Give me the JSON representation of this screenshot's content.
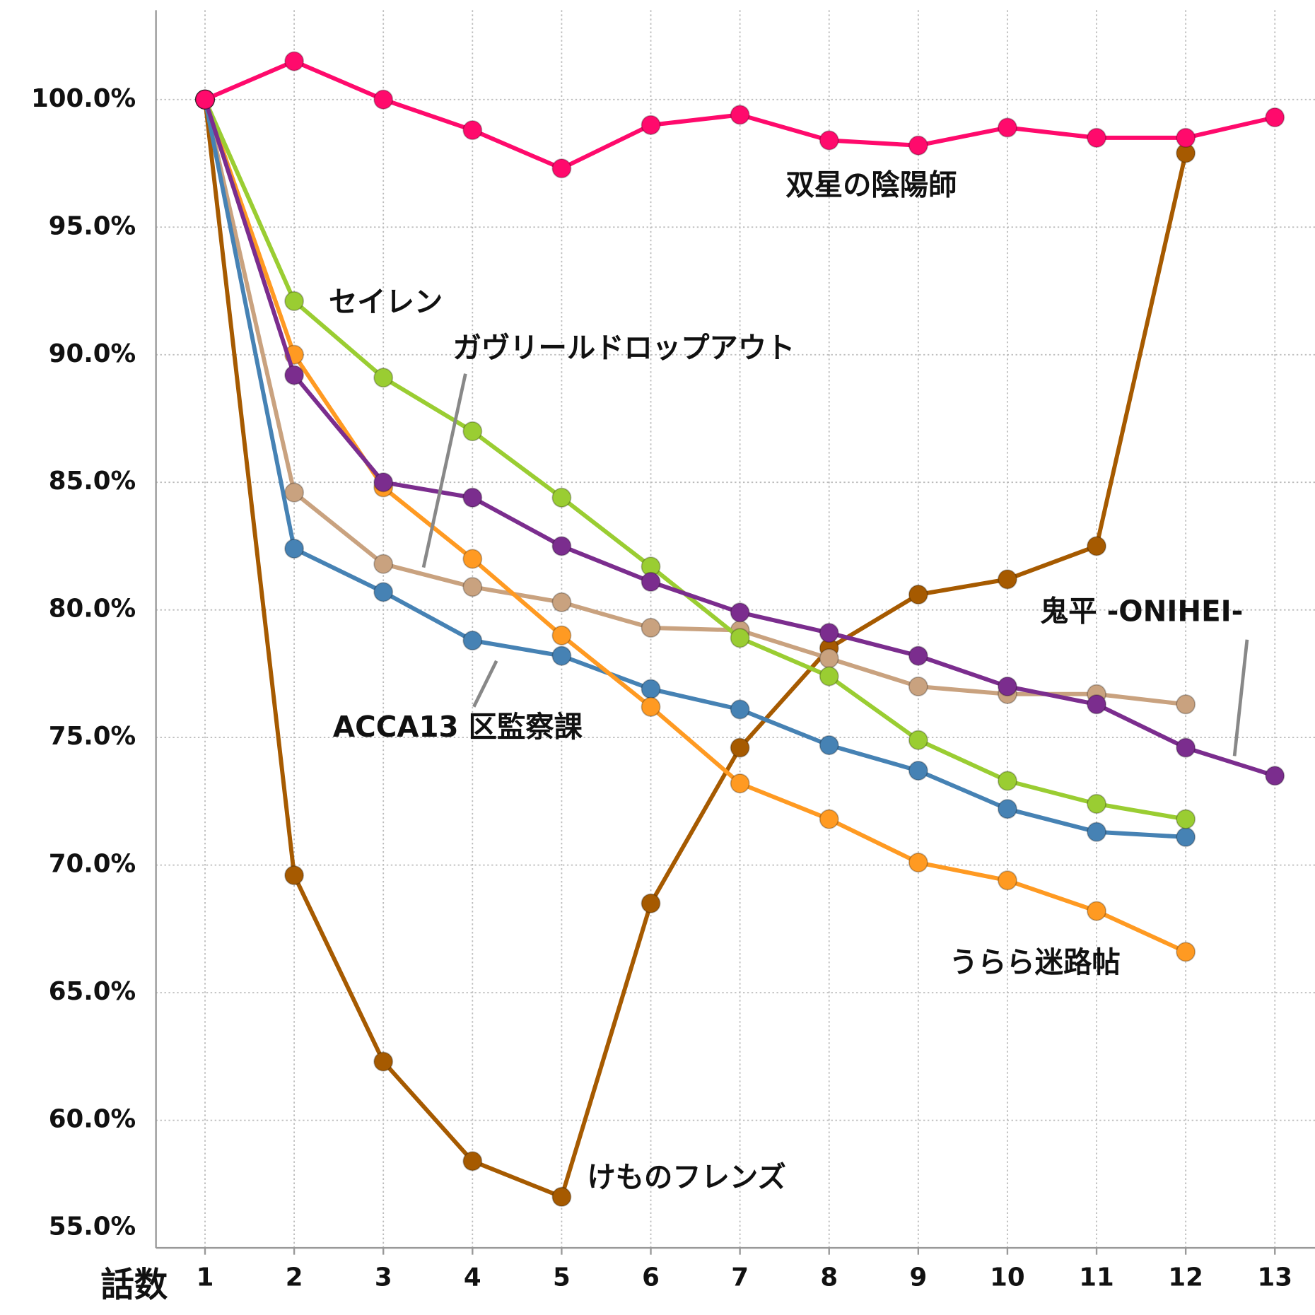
{
  "chart_data": {
    "type": "line",
    "x_label": "話数",
    "x": [
      1,
      2,
      3,
      4,
      5,
      6,
      7,
      8,
      9,
      10,
      11,
      12,
      13
    ],
    "xlim": [
      0.45,
      13.45
    ],
    "xticks": [
      1,
      2,
      3,
      4,
      5,
      6,
      7,
      8,
      9,
      10,
      11,
      12,
      13
    ],
    "ylim": [
      55,
      103.5
    ],
    "yticks": [
      {
        "value": 55,
        "label": "55.0%"
      },
      {
        "value": 60,
        "label": "60.0%"
      },
      {
        "value": 65,
        "label": "65.0%"
      },
      {
        "value": 70,
        "label": "70.0%"
      },
      {
        "value": 75,
        "label": "75.0%"
      },
      {
        "value": 80,
        "label": "80.0%"
      },
      {
        "value": 85,
        "label": "85.0%"
      },
      {
        "value": 90,
        "label": "90.0%"
      },
      {
        "value": 95,
        "label": "95.0%"
      },
      {
        "value": 100,
        "label": "100.0%"
      }
    ],
    "grid": true,
    "series": [
      {
        "name": "けものフレンズ",
        "color": "#a65a00",
        "values": [
          100,
          69.6,
          62.3,
          58.4,
          57.0,
          68.5,
          74.6,
          78.5,
          80.6,
          81.2,
          82.5,
          97.9,
          null
        ]
      },
      {
        "name": "ガヴリールドロップアウト",
        "color": "#c9a27f",
        "values": [
          100,
          84.6,
          81.8,
          80.9,
          80.3,
          79.3,
          79.2,
          78.1,
          77.0,
          76.7,
          76.7,
          76.3,
          null
        ]
      },
      {
        "name": "ACCA13 区監察課",
        "color": "#4682b4",
        "values": [
          100,
          82.4,
          80.7,
          78.8,
          78.2,
          76.9,
          76.1,
          74.7,
          73.7,
          72.2,
          71.3,
          71.1,
          null
        ]
      },
      {
        "name": "うらら迷路帖",
        "color": "#ff9a22",
        "values": [
          100,
          90.0,
          84.8,
          82.0,
          79.0,
          76.2,
          73.2,
          71.8,
          70.1,
          69.4,
          68.2,
          66.6,
          null
        ]
      },
      {
        "name": "セイレン",
        "color": "#9acd32",
        "values": [
          100,
          92.1,
          89.1,
          87.0,
          84.4,
          81.7,
          78.9,
          77.4,
          74.9,
          73.3,
          72.4,
          71.8,
          null
        ]
      },
      {
        "name": "鬼平 -ONIHEI-",
        "color": "#7b2d8e",
        "values": [
          100,
          89.2,
          85.0,
          84.4,
          82.5,
          81.1,
          79.9,
          79.1,
          78.2,
          77.0,
          76.3,
          74.6,
          73.5
        ]
      },
      {
        "name": "双星の陰陽師",
        "color": "#ff0a6c",
        "values": [
          100,
          101.5,
          100,
          98.8,
          97.3,
          99.0,
          99.4,
          98.4,
          98.2,
          98.9,
          98.5,
          98.5,
          99.3
        ]
      }
    ]
  }
}
